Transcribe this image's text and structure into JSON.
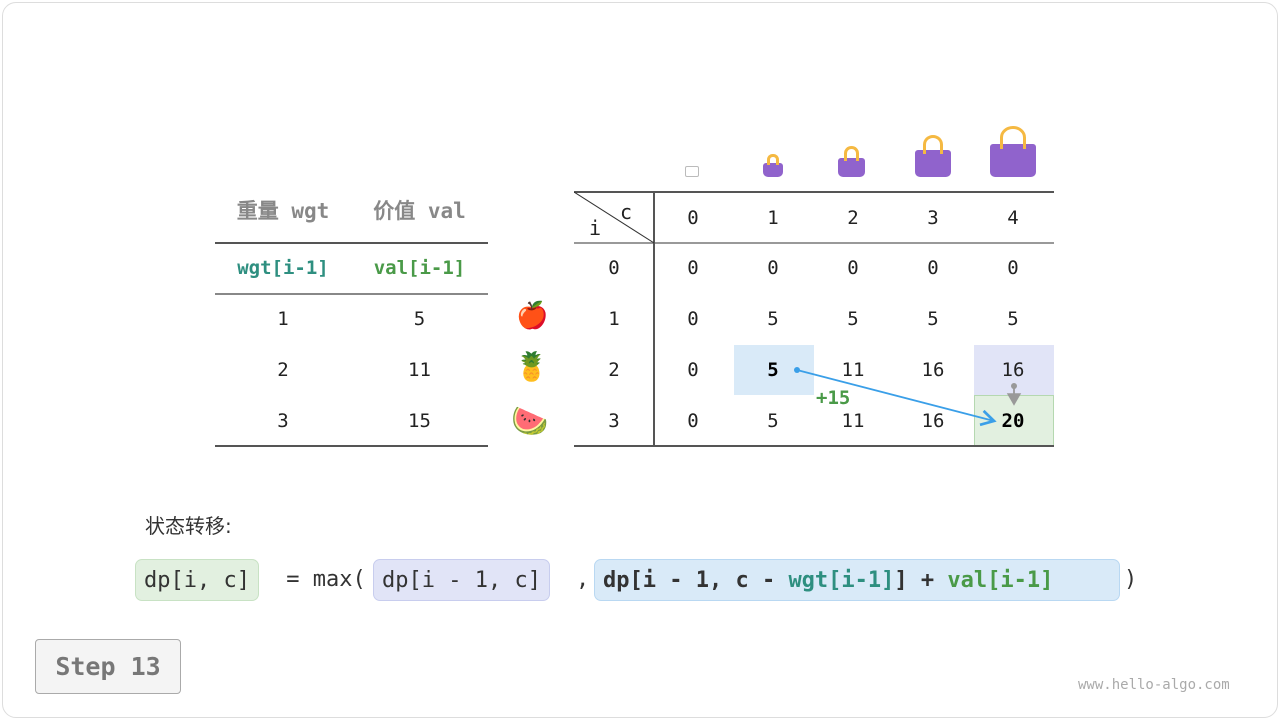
{
  "left_table": {
    "headers": [
      "重量 wgt",
      "价值 val"
    ],
    "subheaders": [
      "wgt[i-1]",
      "val[i-1]"
    ],
    "rows": [
      [
        "1",
        "5"
      ],
      [
        "2",
        "11"
      ],
      [
        "3",
        "15"
      ]
    ]
  },
  "items": [
    "apple-icon",
    "pineapple-icon",
    "watermelon-icon"
  ],
  "dp_table": {
    "corner_i": "i",
    "corner_c": "c",
    "cols": [
      "0",
      "1",
      "2",
      "3",
      "4"
    ],
    "row_labels": [
      "0",
      "1",
      "2",
      "3"
    ],
    "rows": [
      [
        "0",
        "0",
        "0",
        "0",
        "0"
      ],
      [
        "0",
        "5",
        "5",
        "5",
        "5"
      ],
      [
        "0",
        "5",
        "11",
        "16",
        "16"
      ],
      [
        "0",
        "5",
        "11",
        "16",
        "20"
      ]
    ]
  },
  "annotation": "+15",
  "formula": {
    "label": "状态转移:",
    "lhs": "dp[i, c]",
    "eq": " = max(",
    "a": "dp[i - 1, c]",
    "comma": ",",
    "b_prefix": "dp[i - 1, c - ",
    "b_wgt": "wgt[i-1]",
    "b_mid": "] + ",
    "b_val": "val[i-1]",
    "close": ")"
  },
  "colors": {
    "teal": "#2e8f80",
    "green": "#4a9a48",
    "blue_cell": "#d9eaf8",
    "purple_cell": "#e1e4f7",
    "green_cell": "#e2f0e0",
    "arrow": "#3a9fe8"
  },
  "step_label": "Step 13",
  "watermark": "www.hello-algo.com"
}
